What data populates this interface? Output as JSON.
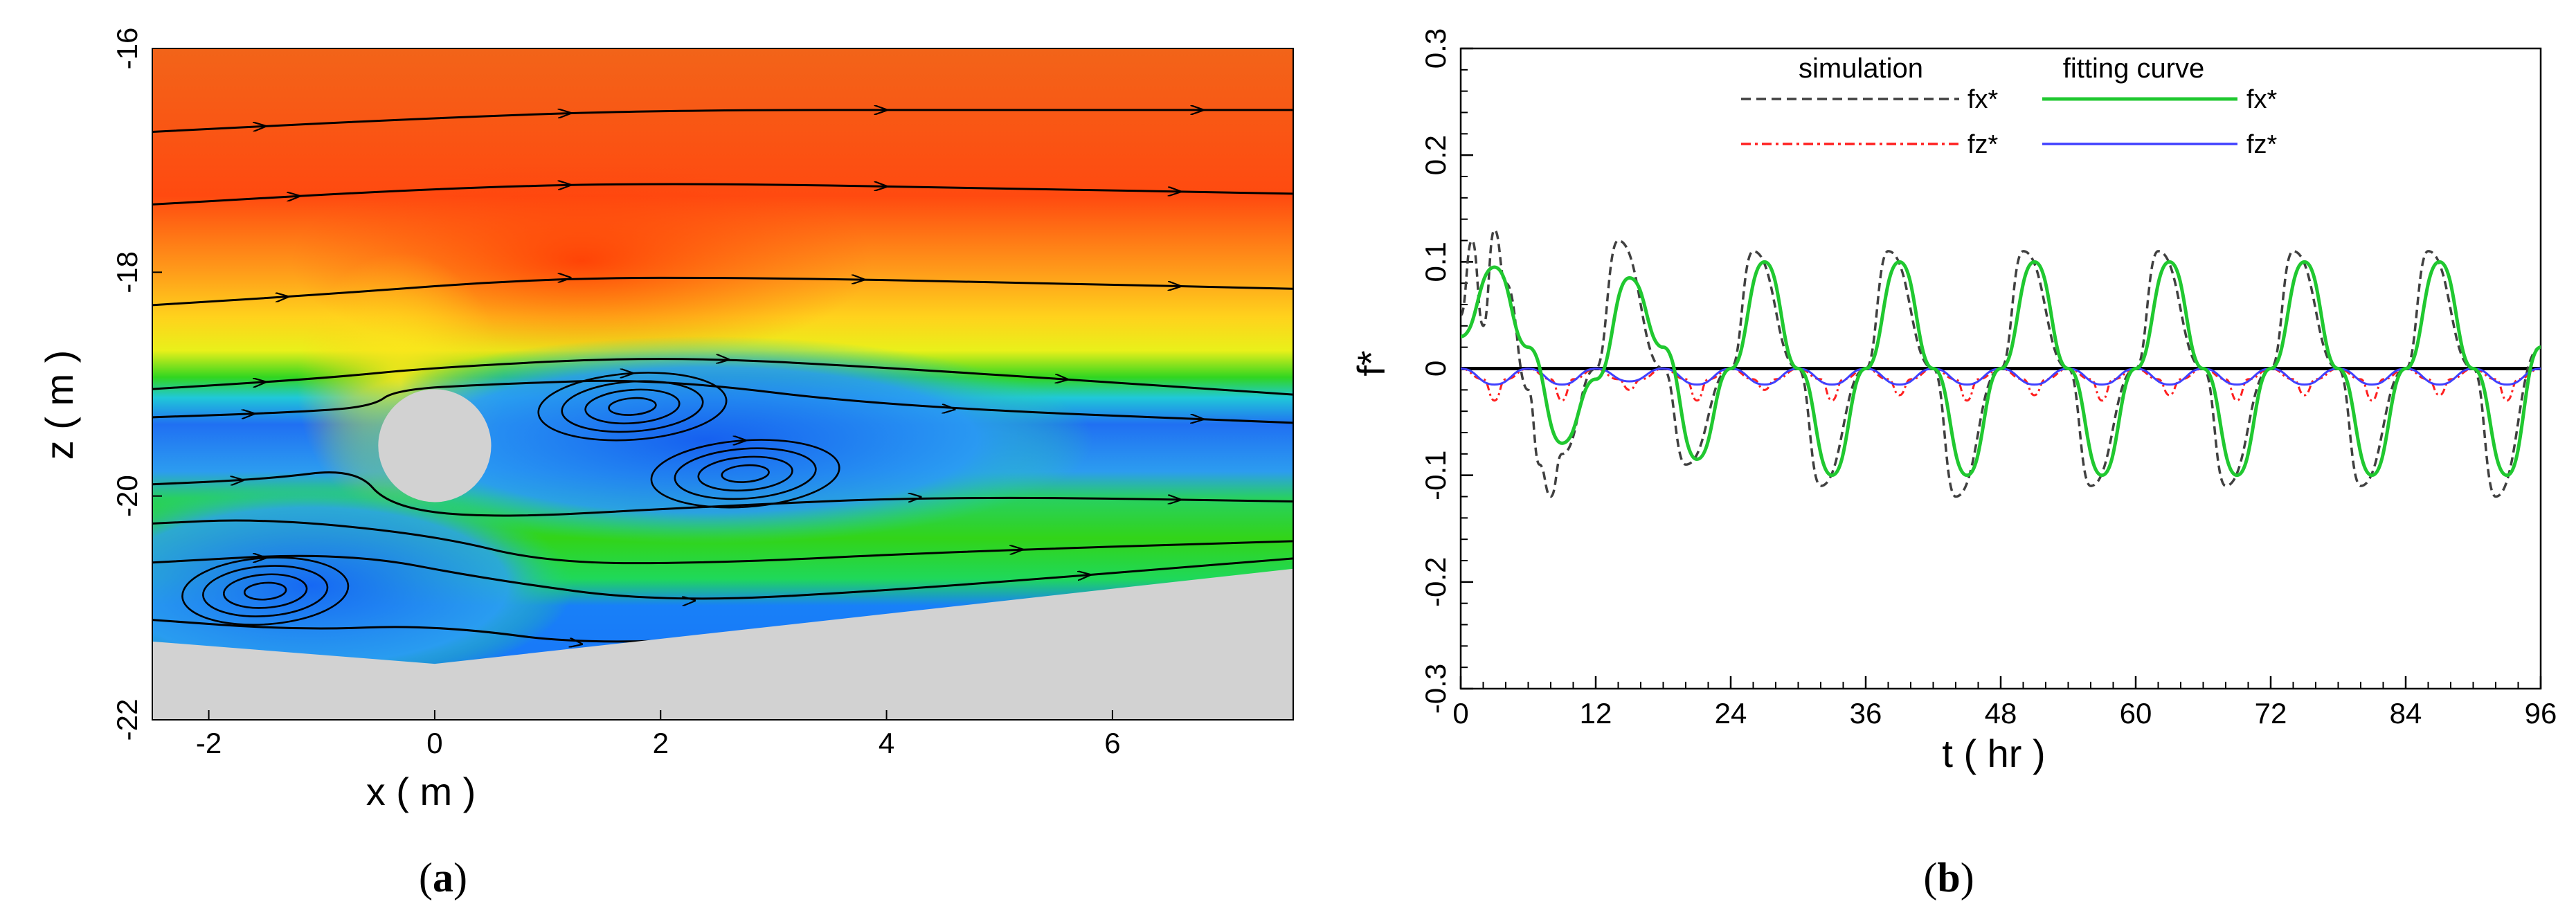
{
  "panels": {
    "a": {
      "caption_open": "(",
      "caption_letter": "a",
      "caption_close": ")"
    },
    "b": {
      "caption_open": "(",
      "caption_letter": "b",
      "caption_close": ")"
    }
  },
  "colors": {
    "fx_simulation": "#404040",
    "fz_simulation": "#ff2020",
    "fx_fit": "#20c830",
    "fz_fit": "#4040ff",
    "zero_line": "#000000",
    "seabed": "#d2d2d2",
    "cylinder": "#d2d2d2"
  },
  "chart_data": [
    {
      "type": "heatmap",
      "panel": "a",
      "description_kind": "velocity contour with streamlines around a cylinder above a sloped seabed",
      "xlabel": "x ( m )",
      "ylabel": "z ( m )",
      "xlim": [
        -2.5,
        7.6
      ],
      "ylim": [
        -22,
        -16
      ],
      "xticks": [
        -2,
        0,
        2,
        4,
        6
      ],
      "yticks": [
        -22,
        -20,
        -18,
        -16
      ],
      "cylinder": {
        "center": [
          0,
          -19.55
        ],
        "radius": 0.5
      },
      "seabed": [
        [
          -2.5,
          -21.3
        ],
        [
          0,
          -21.5
        ],
        [
          7.6,
          -20.65
        ]
      ],
      "vortices": [
        [
          1.75,
          -19.2
        ],
        [
          2.75,
          -19.8
        ],
        [
          -1.5,
          -20.85
        ]
      ]
    },
    {
      "type": "line",
      "panel": "b",
      "xlabel": "t ( hr )",
      "ylabel": "f*",
      "xlim": [
        0,
        96
      ],
      "ylim": [
        -0.3,
        0.3
      ],
      "xticks": [
        0,
        12,
        24,
        36,
        48,
        60,
        72,
        84,
        96
      ],
      "yticks": [
        -0.3,
        -0.2,
        -0.1,
        0,
        0.1,
        0.2,
        0.3
      ],
      "legend": {
        "position": "top-right",
        "group_labels": [
          "simulation",
          "fitting curve"
        ],
        "entries": [
          {
            "group": "simulation",
            "label": "fx*",
            "style": "dashed",
            "color": "#404040"
          },
          {
            "group": "fitting curve",
            "label": "fx*",
            "style": "solid",
            "color": "#20c830"
          },
          {
            "group": "simulation",
            "label": "fz*",
            "style": "dash-dot",
            "color": "#ff2020"
          },
          {
            "group": "fitting curve",
            "label": "fz*",
            "style": "solid",
            "color": "#4040ff"
          }
        ]
      },
      "series": [
        {
          "name": "fx* fitting curve",
          "x": [
            0,
            3,
            6,
            9,
            12,
            15,
            18,
            21,
            24,
            27,
            30,
            33,
            36,
            39,
            42,
            45,
            48,
            51,
            54,
            57,
            60,
            63,
            66,
            69,
            72,
            75,
            78,
            81,
            84,
            87,
            90,
            93,
            96
          ],
          "y": [
            0.03,
            0.095,
            0.02,
            -0.07,
            -0.01,
            0.085,
            0.02,
            -0.085,
            0.0,
            0.1,
            0.0,
            -0.1,
            0.0,
            0.1,
            0.0,
            -0.1,
            0.0,
            0.1,
            0.0,
            -0.1,
            0.0,
            0.1,
            0.0,
            -0.1,
            0.0,
            0.1,
            0.0,
            -0.1,
            0.0,
            0.1,
            0.0,
            -0.1,
            0.02
          ]
        },
        {
          "name": "fx* simulation",
          "x": [
            0,
            1,
            2,
            3,
            4,
            6,
            7,
            8,
            9,
            12,
            14,
            18,
            20,
            24,
            26,
            30,
            32,
            36,
            38,
            42,
            44,
            48,
            50,
            54,
            56,
            60,
            62,
            66,
            68,
            72,
            74,
            78,
            80,
            84,
            86,
            90,
            92,
            96
          ],
          "y": [
            0.05,
            0.12,
            0.04,
            0.13,
            0.08,
            -0.02,
            -0.09,
            -0.12,
            -0.08,
            0.0,
            0.12,
            0.0,
            -0.09,
            0.0,
            0.11,
            0.0,
            -0.11,
            0.0,
            0.11,
            0.0,
            -0.12,
            0.0,
            0.11,
            0.0,
            -0.11,
            0.0,
            0.11,
            0.0,
            -0.11,
            0.0,
            0.11,
            0.0,
            -0.11,
            0.0,
            0.11,
            0.0,
            -0.12,
            0.02
          ]
        },
        {
          "name": "fz* fitting curve",
          "x": [
            0,
            3,
            6,
            9,
            12,
            15,
            18,
            21,
            24,
            27,
            30,
            33,
            36,
            39,
            42,
            45,
            48,
            51,
            54,
            57,
            60,
            63,
            66,
            69,
            72,
            75,
            78,
            81,
            84,
            87,
            90,
            93,
            96
          ],
          "y": [
            0,
            -0.015,
            0,
            -0.015,
            0,
            -0.012,
            0,
            -0.015,
            0,
            -0.015,
            0,
            -0.015,
            0,
            -0.015,
            0,
            -0.015,
            0,
            -0.015,
            0,
            -0.015,
            0,
            -0.015,
            0,
            -0.015,
            0,
            -0.015,
            0,
            -0.015,
            0,
            -0.015,
            0,
            -0.015,
            0
          ]
        },
        {
          "name": "fz* simulation",
          "x": [
            0,
            2,
            3,
            4,
            6,
            8,
            9,
            10,
            12,
            14,
            15,
            16,
            18,
            20,
            21,
            22,
            24,
            26,
            27,
            28,
            30,
            32,
            33,
            34,
            36,
            38,
            39,
            40,
            42,
            44,
            45,
            46,
            48,
            50,
            51,
            52,
            54,
            56,
            57,
            58,
            60,
            62,
            63,
            64,
            66,
            68,
            69,
            70,
            72,
            74,
            75,
            76,
            78,
            80,
            81,
            82,
            84,
            86,
            87,
            88,
            90,
            92,
            93,
            94,
            96
          ],
          "y": [
            0,
            -0.01,
            -0.03,
            -0.01,
            0,
            -0.01,
            -0.03,
            -0.01,
            0,
            -0.01,
            -0.02,
            -0.01,
            0,
            -0.01,
            -0.03,
            -0.01,
            0,
            -0.01,
            -0.02,
            -0.01,
            0,
            -0.01,
            -0.03,
            -0.01,
            0,
            -0.01,
            -0.025,
            -0.01,
            0,
            -0.01,
            -0.03,
            -0.01,
            0,
            -0.01,
            -0.025,
            -0.01,
            0,
            -0.01,
            -0.03,
            -0.01,
            0,
            -0.01,
            -0.025,
            -0.01,
            0,
            -0.01,
            -0.03,
            -0.01,
            0,
            -0.01,
            -0.025,
            -0.01,
            0,
            -0.01,
            -0.03,
            -0.01,
            0,
            -0.01,
            -0.025,
            -0.01,
            0,
            -0.01,
            -0.03,
            -0.01,
            0
          ]
        }
      ]
    }
  ]
}
